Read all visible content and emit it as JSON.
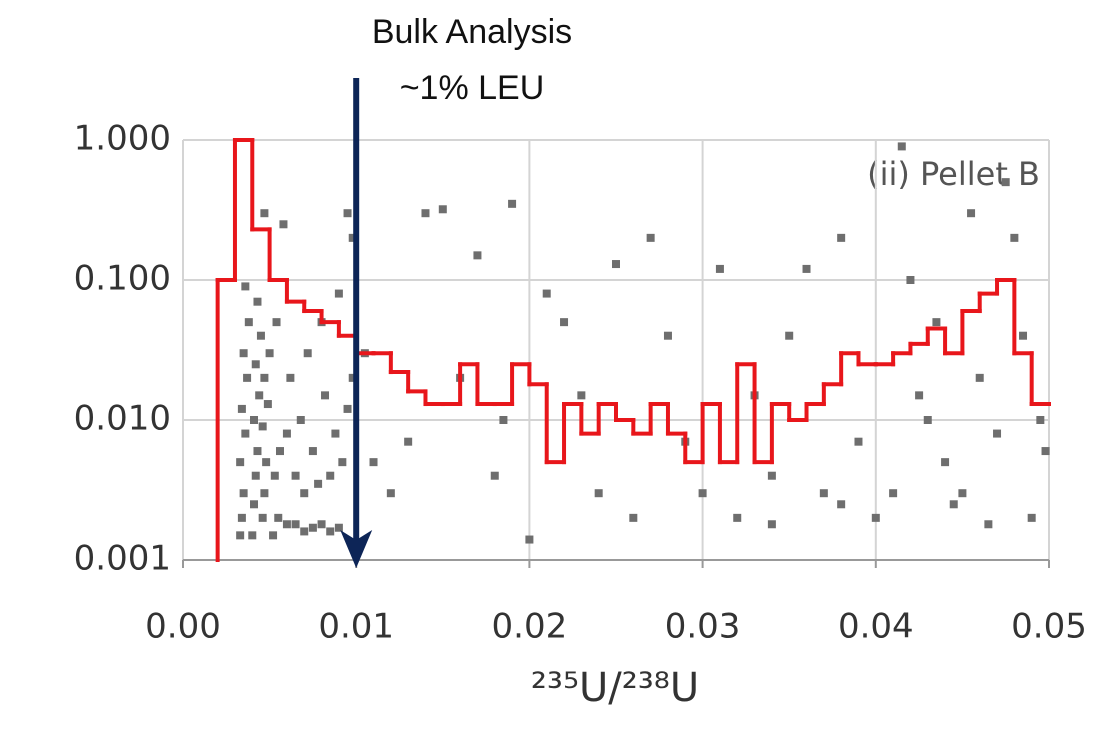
{
  "chart_data": {
    "type": "scatter",
    "annotation_lines": [
      "Bulk Analysis",
      "~1% LEU"
    ],
    "annotation_x": 0.01,
    "panel_label": "(ii) Pellet B",
    "x_label": "²³⁵U/²³⁸U",
    "xlim": [
      0,
      0.05
    ],
    "ylim": [
      0.001,
      1
    ],
    "log_y": true,
    "grid": true,
    "xticks": [
      {
        "value": 0,
        "label": "0.00"
      },
      {
        "value": 0.01,
        "label": "0.01"
      },
      {
        "value": 0.02,
        "label": "0.02"
      },
      {
        "value": 0.03,
        "label": "0.03"
      },
      {
        "value": 0.04,
        "label": "0.04"
      },
      {
        "value": 0.05,
        "label": "0.05"
      }
    ],
    "yticks": [
      {
        "value": 0.001,
        "label": "0.001"
      },
      {
        "value": 0.01,
        "label": "0.010"
      },
      {
        "value": 0.1,
        "label": "0.100"
      },
      {
        "value": 1,
        "label": "1.000"
      }
    ],
    "scatter": {
      "color": "#6e6e6e",
      "x": [
        0.0033,
        0.0034,
        0.0035,
        0.0033,
        0.0036,
        0.0034,
        0.0037,
        0.0035,
        0.0038,
        0.0036,
        0.004,
        0.0041,
        0.0042,
        0.0043,
        0.0041,
        0.0044,
        0.0042,
        0.0045,
        0.0043,
        0.0046,
        0.0047,
        0.0048,
        0.0046,
        0.0049,
        0.0047,
        0.005,
        0.0052,
        0.0055,
        0.0053,
        0.0056,
        0.0054,
        0.0058,
        0.0047,
        0.006,
        0.0065,
        0.007,
        0.0075,
        0.008,
        0.0085,
        0.009,
        0.0065,
        0.007,
        0.0078,
        0.0085,
        0.0092,
        0.006,
        0.0068,
        0.0075,
        0.0088,
        0.0095,
        0.0062,
        0.0072,
        0.0082,
        0.0098,
        0.008,
        0.009,
        0.0095,
        0.0098,
        0.0105,
        0.011,
        0.012,
        0.013,
        0.014,
        0.015,
        0.016,
        0.017,
        0.018,
        0.019,
        0.0185,
        0.02,
        0.021,
        0.022,
        0.023,
        0.024,
        0.025,
        0.026,
        0.027,
        0.028,
        0.029,
        0.03,
        0.031,
        0.032,
        0.033,
        0.034,
        0.035,
        0.036,
        0.037,
        0.038,
        0.039,
        0.04,
        0.041,
        0.0415,
        0.042,
        0.043,
        0.044,
        0.045,
        0.0455,
        0.046,
        0.047,
        0.0475,
        0.048,
        0.0485,
        0.049,
        0.0495,
        0.0498,
        0.0445,
        0.0465,
        0.0425,
        0.0435,
        0.038,
        0.034
      ],
      "y": [
        0.0015,
        0.002,
        0.003,
        0.005,
        0.008,
        0.012,
        0.02,
        0.03,
        0.05,
        0.09,
        0.0015,
        0.0025,
        0.004,
        0.006,
        0.01,
        0.015,
        0.025,
        0.04,
        0.07,
        0.002,
        0.003,
        0.005,
        0.009,
        0.013,
        0.02,
        0.03,
        0.0015,
        0.002,
        0.004,
        0.006,
        0.05,
        0.25,
        0.3,
        0.0018,
        0.0018,
        0.0016,
        0.0017,
        0.0018,
        0.0016,
        0.0017,
        0.004,
        0.003,
        0.0035,
        0.004,
        0.005,
        0.008,
        0.01,
        0.006,
        0.008,
        0.012,
        0.02,
        0.03,
        0.015,
        0.02,
        0.05,
        0.08,
        0.3,
        0.2,
        0.03,
        0.005,
        0.003,
        0.007,
        0.3,
        0.32,
        0.02,
        0.15,
        0.004,
        0.35,
        0.01,
        0.0014,
        0.08,
        0.05,
        0.015,
        0.003,
        0.13,
        0.002,
        0.2,
        0.04,
        0.007,
        0.003,
        0.12,
        0.002,
        0.015,
        0.004,
        0.04,
        0.12,
        0.003,
        0.2,
        0.007,
        0.002,
        0.003,
        0.9,
        0.1,
        0.01,
        0.005,
        0.003,
        0.3,
        0.02,
        0.008,
        0.5,
        0.2,
        0.04,
        0.002,
        0.01,
        0.006,
        0.0025,
        0.0018,
        0.015,
        0.05,
        0.0025,
        0.0018
      ]
    },
    "histogram": {
      "color": "#e8161b",
      "bins": [
        0.002,
        0.003,
        0.004,
        0.005,
        0.006,
        0.007,
        0.008,
        0.009,
        0.01,
        0.011,
        0.012,
        0.013,
        0.014,
        0.015,
        0.016,
        0.017,
        0.018,
        0.019,
        0.02,
        0.021,
        0.022,
        0.023,
        0.024,
        0.025,
        0.026,
        0.027,
        0.028,
        0.029,
        0.03,
        0.031,
        0.032,
        0.033,
        0.034,
        0.035,
        0.036,
        0.037,
        0.038,
        0.039,
        0.04,
        0.041,
        0.042,
        0.043,
        0.044,
        0.045,
        0.046,
        0.047,
        0.048,
        0.049,
        0.05
      ],
      "counts": [
        0.1,
        1,
        0.23,
        0.1,
        0.07,
        0.06,
        0.05,
        0.04,
        0.03,
        0.03,
        0.022,
        0.016,
        0.013,
        0.013,
        0.025,
        0.013,
        0.013,
        0.025,
        0.018,
        0.005,
        0.013,
        0.008,
        0.013,
        0.01,
        0.008,
        0.013,
        0.008,
        0.005,
        0.013,
        0.005,
        0.025,
        0.005,
        0.013,
        0.01,
        0.013,
        0.018,
        0.03,
        0.025,
        0.025,
        0.03,
        0.035,
        0.045,
        0.03,
        0.06,
        0.08,
        0.1,
        0.03,
        0.013
      ]
    },
    "annotation_color": "#0d2557"
  }
}
